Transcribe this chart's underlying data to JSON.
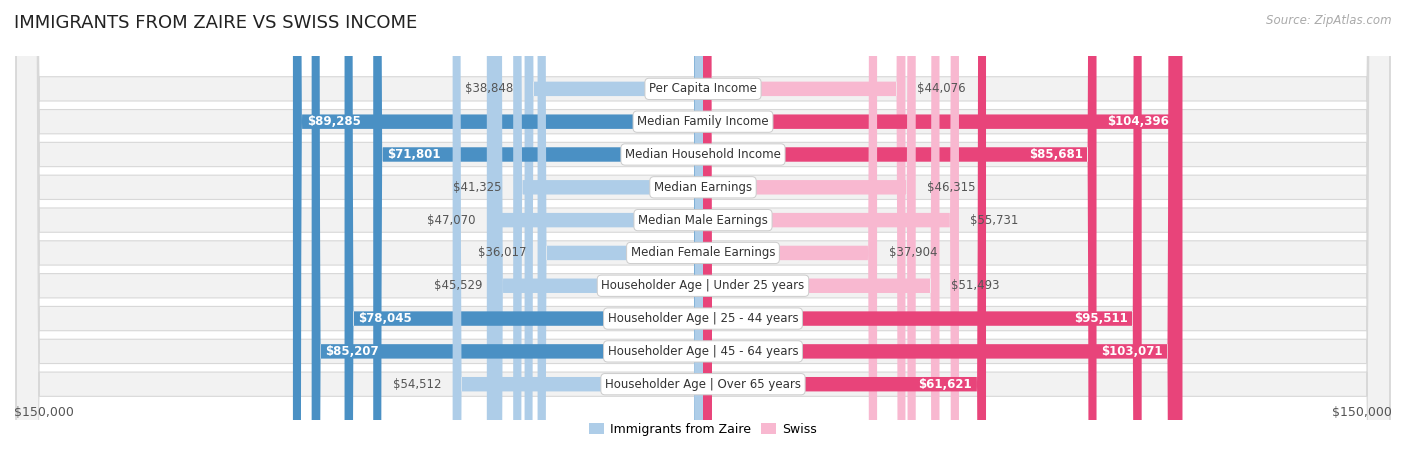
{
  "title": "IMMIGRANTS FROM ZAIRE VS SWISS INCOME",
  "source": "Source: ZipAtlas.com",
  "categories": [
    "Per Capita Income",
    "Median Family Income",
    "Median Household Income",
    "Median Earnings",
    "Median Male Earnings",
    "Median Female Earnings",
    "Householder Age | Under 25 years",
    "Householder Age | 25 - 44 years",
    "Householder Age | 45 - 64 years",
    "Householder Age | Over 65 years"
  ],
  "zaire_values": [
    38848,
    89285,
    71801,
    41325,
    47070,
    36017,
    45529,
    78045,
    85207,
    54512
  ],
  "swiss_values": [
    44076,
    104396,
    85681,
    46315,
    55731,
    37904,
    51493,
    95511,
    103071,
    61621
  ],
  "zaire_color_light": "#aecde8",
  "zaire_color_dark": "#4a90c4",
  "swiss_color_light": "#f8b8d0",
  "swiss_color_dark": "#e8447a",
  "label_white": "#ffffff",
  "label_dark": "#555555",
  "background_color": "#ffffff",
  "row_bg_color": "#f2f2f2",
  "row_border_color": "#d8d8d8",
  "max_value": 150000,
  "xlabel_left": "$150,000",
  "xlabel_right": "$150,000",
  "legend_zaire": "Immigrants from Zaire",
  "legend_swiss": "Swiss",
  "title_fontsize": 13,
  "source_fontsize": 8.5,
  "bar_label_fontsize": 8.5,
  "category_fontsize": 8.5,
  "axis_label_fontsize": 9,
  "legend_fontsize": 9,
  "zaire_threshold": 60000,
  "swiss_threshold": 60000
}
